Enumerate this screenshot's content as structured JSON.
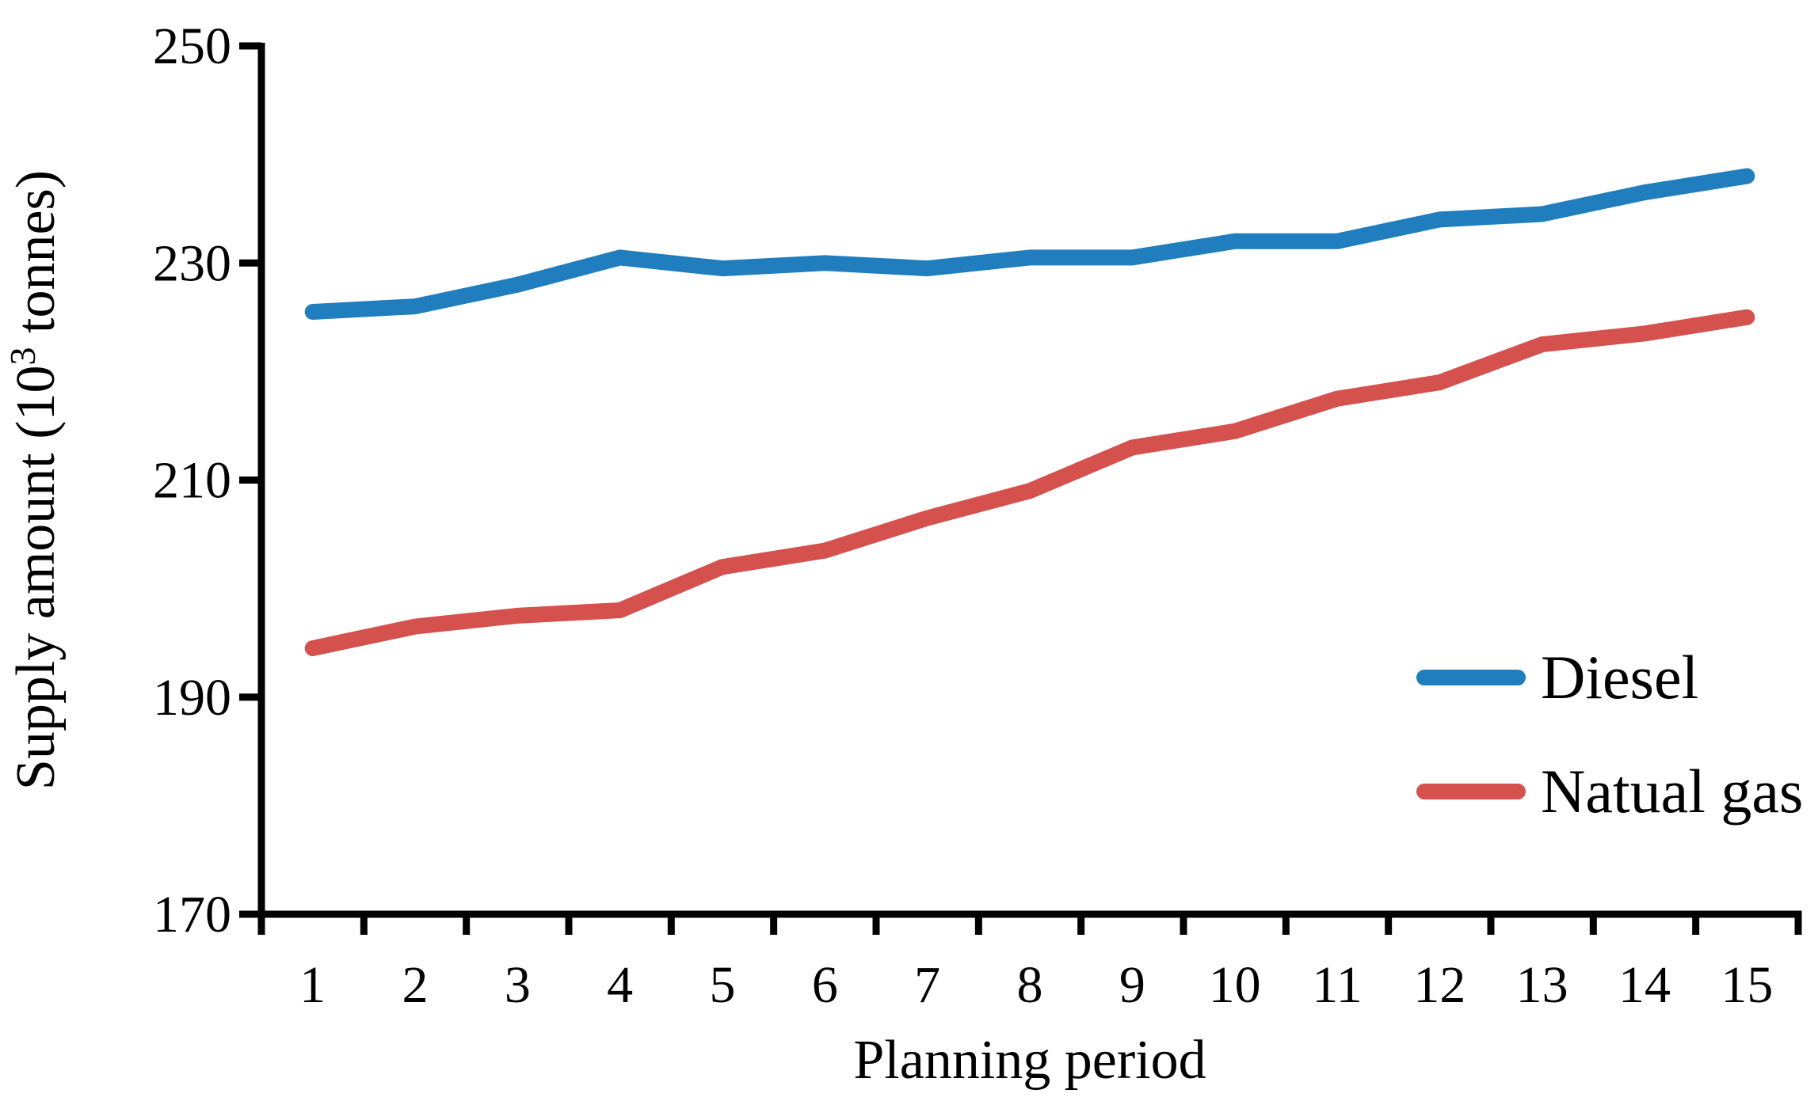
{
  "chart_data": {
    "type": "line",
    "title": "",
    "xlabel": "Planning period",
    "ylabel": "Supply amount (10³ tonnes)",
    "ylabel_parts": {
      "pre": "Supply amount (10",
      "sup": "3",
      "post": " tonnes)"
    },
    "categories": [
      "1",
      "2",
      "3",
      "4",
      "5",
      "6",
      "7",
      "8",
      "9",
      "10",
      "11",
      "12",
      "13",
      "14",
      "15"
    ],
    "series": [
      {
        "name": "Diesel",
        "color": "#207EBE",
        "values": [
          225.5,
          226,
          228,
          230.5,
          229.5,
          230,
          229.5,
          230.5,
          230.5,
          232,
          232,
          234,
          234.5,
          236.5,
          238
        ]
      },
      {
        "name": "Natual gas",
        "color": "#D4514E",
        "values": [
          194.5,
          196.5,
          197.5,
          198,
          202,
          203.5,
          206.5,
          209,
          213,
          214.5,
          217.5,
          219,
          222.5,
          223.5,
          225
        ]
      }
    ],
    "ylim": [
      170,
      250
    ],
    "yticks": [
      170,
      190,
      210,
      230,
      250
    ],
    "grid": false,
    "legend_position": "right-middle",
    "axis_color": "#000000",
    "background_color": "#ffffff"
  }
}
